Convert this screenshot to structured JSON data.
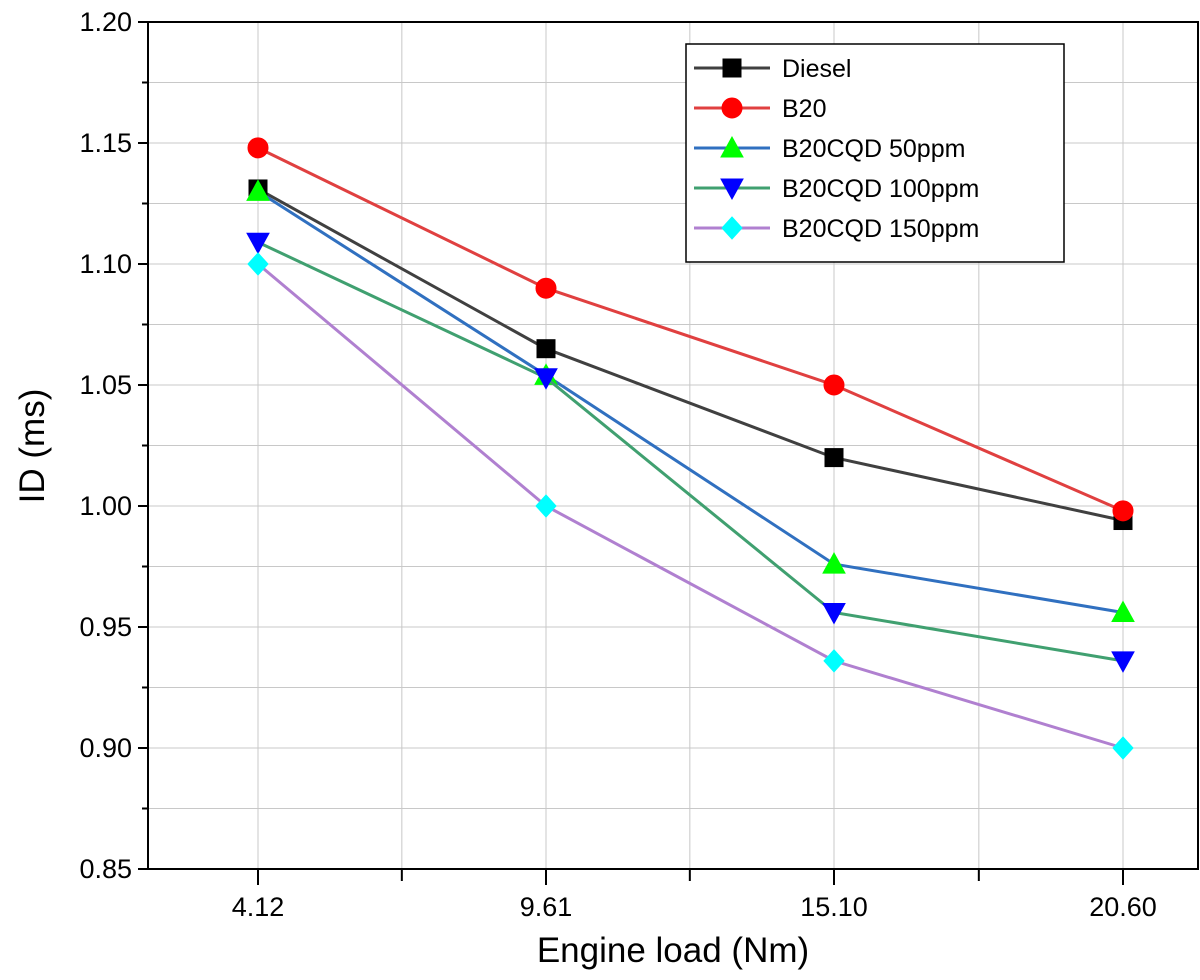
{
  "chart_data": {
    "type": "line",
    "title": "",
    "xlabel": "Engine load (Nm)",
    "ylabel": "ID (ms)",
    "categories": [
      "4.12",
      "9.61",
      "15.10",
      "20.60"
    ],
    "ylim": [
      0.85,
      1.2
    ],
    "yticks": [
      "0.85",
      "0.90",
      "0.95",
      "1.00",
      "1.05",
      "1.10",
      "1.15",
      "1.20"
    ],
    "grid": true,
    "legend_position": "top-right",
    "series": [
      {
        "name": "Diesel",
        "color": "#000000",
        "line_color": "#404040",
        "marker": "square",
        "values": [
          1.131,
          1.065,
          1.02,
          0.994
        ]
      },
      {
        "name": "B20",
        "color": "#ff0000",
        "line_color": "#e04040",
        "marker": "circle",
        "values": [
          1.148,
          1.09,
          1.05,
          0.998
        ]
      },
      {
        "name": "B20CQD 50ppm",
        "color": "#00ff00",
        "line_color": "#3070c0",
        "marker": "triangle-up",
        "values": [
          1.13,
          1.054,
          0.976,
          0.956
        ]
      },
      {
        "name": "B20CQD 100ppm",
        "color": "#0000ff",
        "line_color": "#40a070",
        "marker": "triangle-down",
        "values": [
          1.109,
          1.053,
          0.956,
          0.936
        ]
      },
      {
        "name": "B20CQD 150ppm",
        "color": "#00ffff",
        "line_color": "#b080d0",
        "marker": "diamond",
        "values": [
          1.1,
          1.0,
          0.936,
          0.9
        ]
      }
    ]
  }
}
